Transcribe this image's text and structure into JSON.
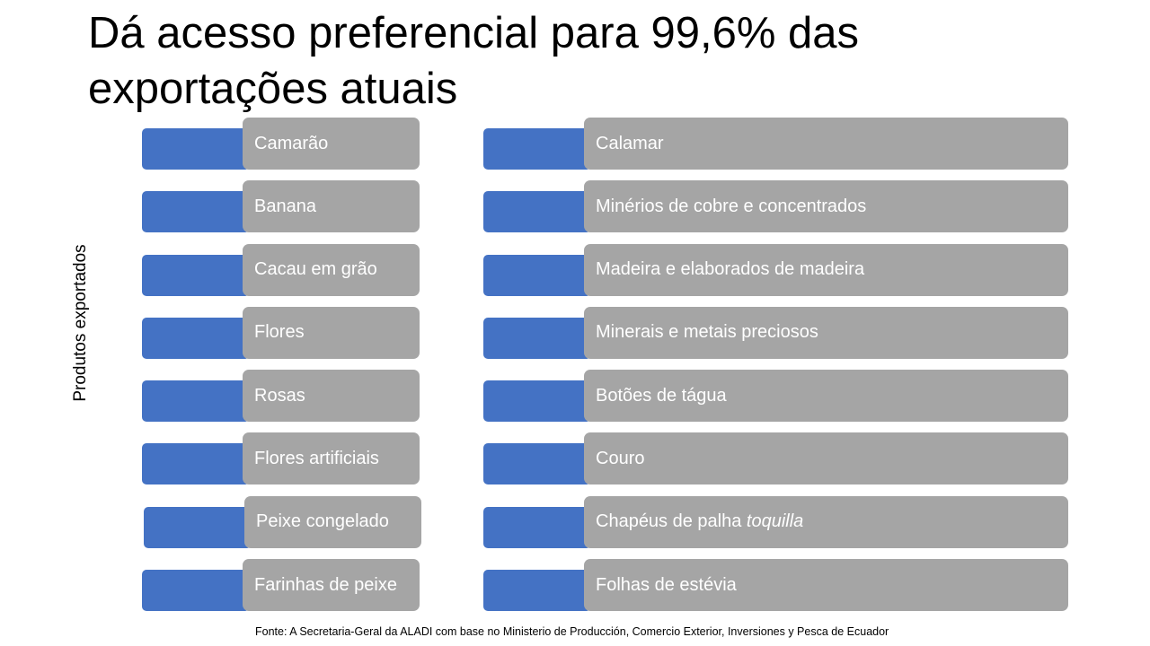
{
  "slide": {
    "title": "Dá acesso preferencial para 99,6% das exportações atuais",
    "vertical_label": "Produtos exportados",
    "source": "Fonte: A Secretaria-Geral da ALADI com base no Ministerio de Producción, Comercio Exterior, Inversiones y Pesca de Ecuador"
  },
  "products": {
    "left": [
      {
        "label": "Camarão"
      },
      {
        "label": "Banana"
      },
      {
        "label": "Cacau em grão"
      },
      {
        "label": "Flores"
      },
      {
        "label": "Rosas"
      },
      {
        "label": "Flores artificiais"
      },
      {
        "label": "Peixe congelado"
      },
      {
        "label": "Farinhas de peixe"
      }
    ],
    "right": [
      {
        "label": "Calamar"
      },
      {
        "label": "Minérios de cobre e concentrados"
      },
      {
        "label": "Madeira e elaborados de madeira"
      },
      {
        "label": "Minerais e metais preciosos"
      },
      {
        "label": "Botões de tágua"
      },
      {
        "label": "Couro"
      },
      {
        "label": "Chapéus de palha ",
        "italic": "toquilla"
      },
      {
        "label": "Folhas de estévia"
      }
    ]
  },
  "colors": {
    "accent_tab": "#4472c4",
    "card": "#a5a5a5",
    "card_text": "#ffffff"
  }
}
